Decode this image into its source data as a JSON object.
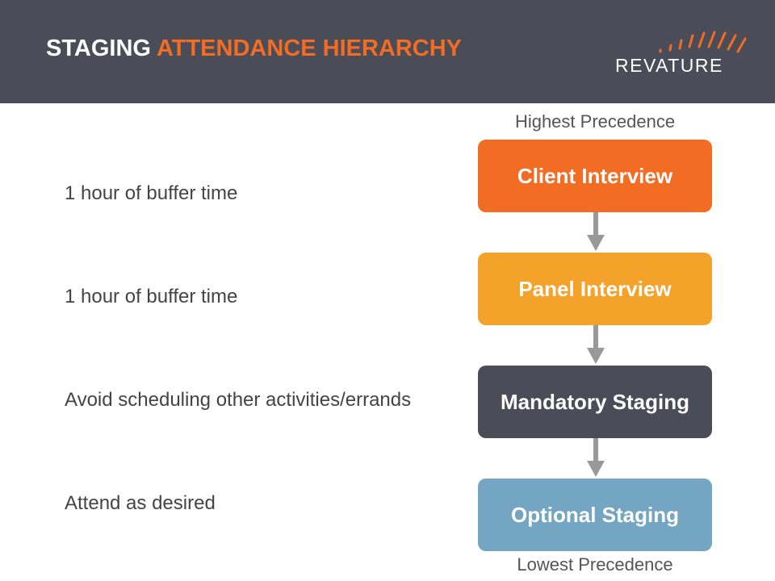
{
  "header": {
    "title_part1": "STAGING",
    "title_part2": "ATTENDANCE HIERARCHY",
    "logo_text": "REVATURE",
    "background": "#4a4d57",
    "accent": "#f36c24"
  },
  "hierarchy": {
    "top_label": "Highest Precedence",
    "bottom_label": "Lowest Precedence",
    "levels": [
      {
        "label": "Client Interview",
        "color": "#f36c24",
        "note": "1 hour of buffer time"
      },
      {
        "label": "Panel Interview",
        "color": "#f5a22b",
        "note": "1 hour of buffer time"
      },
      {
        "label": "Mandatory Staging",
        "color": "#4a4d57",
        "note": "Avoid scheduling other activities/errands"
      },
      {
        "label": "Optional Staging",
        "color": "#74a5c3",
        "note": "Attend as desired"
      }
    ],
    "arrow_color": "#999999"
  }
}
